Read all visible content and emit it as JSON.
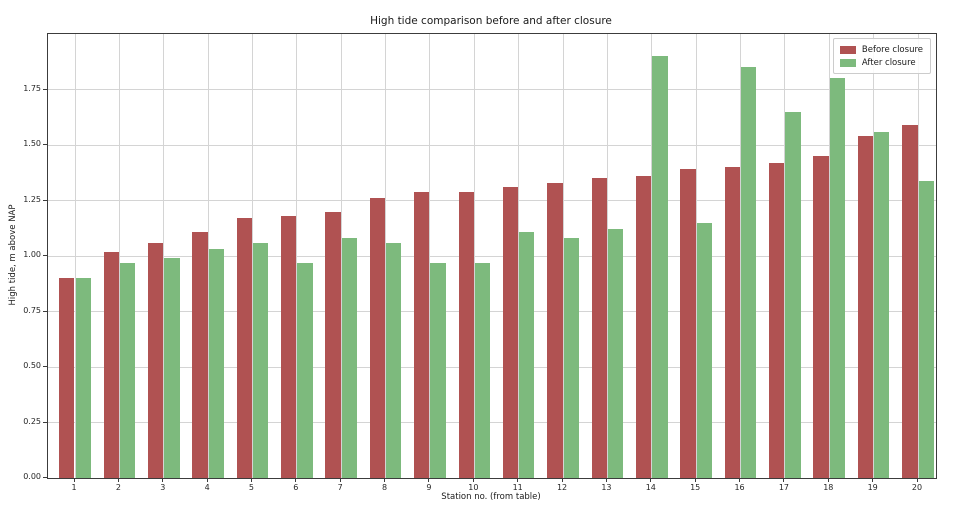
{
  "chart_data": {
    "type": "bar",
    "title": "High tide comparison before and after closure",
    "xlabel": "Station no. (from table)",
    "ylabel": "High tide, m above NAP",
    "categories": [
      "1",
      "2",
      "3",
      "4",
      "5",
      "6",
      "7",
      "8",
      "9",
      "10",
      "11",
      "12",
      "13",
      "14",
      "15",
      "16",
      "17",
      "18",
      "19",
      "20"
    ],
    "series": [
      {
        "name": "Before closure",
        "color": "#b05252",
        "values": [
          0.9,
          1.02,
          1.06,
          1.11,
          1.17,
          1.18,
          1.2,
          1.26,
          1.29,
          1.29,
          1.31,
          1.33,
          1.35,
          1.36,
          1.39,
          1.4,
          1.42,
          1.45,
          1.54,
          1.59
        ]
      },
      {
        "name": "After closure",
        "color": "#7dba7d",
        "values": [
          0.9,
          0.97,
          0.99,
          1.03,
          1.06,
          0.97,
          1.08,
          1.06,
          0.97,
          0.97,
          1.11,
          1.08,
          1.12,
          1.9,
          1.15,
          1.85,
          1.65,
          1.8,
          1.56,
          1.34
        ]
      }
    ],
    "ylim": [
      0,
      2.0
    ],
    "yticks": [
      0.0,
      0.25,
      0.5,
      0.75,
      1.0,
      1.25,
      1.5,
      1.75
    ],
    "ytick_labels": [
      "0.00",
      "0.25",
      "0.50",
      "0.75",
      "1.00",
      "1.25",
      "1.50",
      "1.75"
    ],
    "grid": true,
    "legend_position": "upper right",
    "grid_color": "#d4d4d4",
    "axis_color": "#3c3c3c",
    "background_color": "#ffffff"
  }
}
